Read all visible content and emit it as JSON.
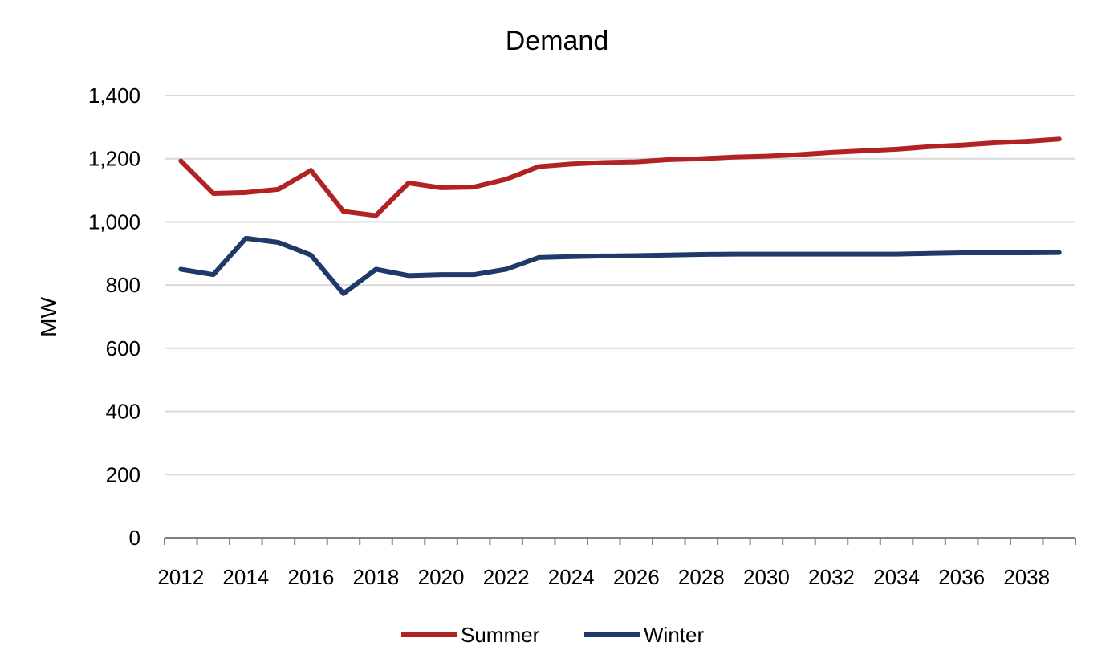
{
  "chart_data": {
    "type": "line",
    "title": "Demand",
    "xlabel": "",
    "ylabel": "MW",
    "ylim": [
      0,
      1400
    ],
    "yticks": [
      0,
      200,
      400,
      600,
      800,
      1000,
      1200,
      1400
    ],
    "ytick_labels": [
      "0",
      "200",
      "400",
      "600",
      "800",
      "1,000",
      "1,200",
      "1,400"
    ],
    "x": [
      2012,
      2013,
      2014,
      2015,
      2016,
      2017,
      2018,
      2019,
      2020,
      2021,
      2022,
      2023,
      2024,
      2025,
      2026,
      2027,
      2028,
      2029,
      2030,
      2031,
      2032,
      2033,
      2034,
      2035,
      2036,
      2037,
      2038,
      2039
    ],
    "xtick_labels": [
      "2012",
      "2014",
      "2016",
      "2018",
      "2020",
      "2022",
      "2024",
      "2026",
      "2028",
      "2030",
      "2032",
      "2034",
      "2036",
      "2038"
    ],
    "grid": true,
    "legend_position": "bottom",
    "series": [
      {
        "name": "Summer",
        "color": "#b22222",
        "values": [
          1193,
          1090,
          1093,
          1103,
          1163,
          1033,
          1020,
          1123,
          1108,
          1110,
          1135,
          1175,
          1183,
          1188,
          1190,
          1197,
          1200,
          1205,
          1208,
          1213,
          1220,
          1225,
          1230,
          1238,
          1243,
          1250,
          1255,
          1262
        ]
      },
      {
        "name": "Winter",
        "color": "#1f3a68",
        "values": [
          850,
          833,
          948,
          935,
          895,
          773,
          850,
          830,
          833,
          833,
          850,
          887,
          890,
          892,
          893,
          895,
          897,
          898,
          898,
          898,
          898,
          898,
          898,
          900,
          902,
          902,
          902,
          903
        ]
      }
    ]
  }
}
